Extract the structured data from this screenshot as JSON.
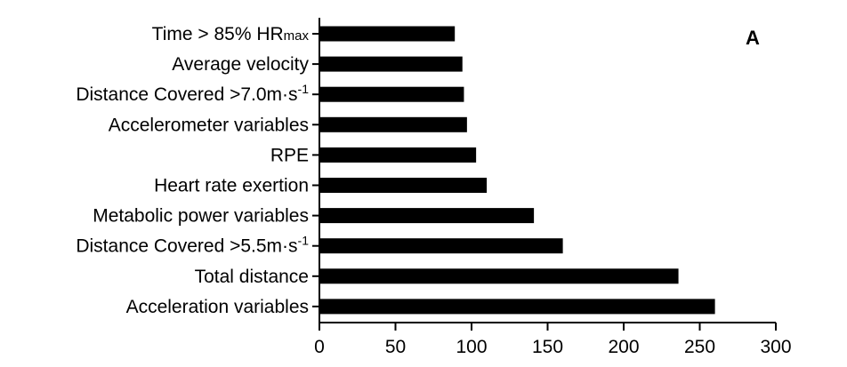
{
  "chart_data": {
    "type": "bar",
    "orientation": "horizontal",
    "panel_label": "A",
    "categories": [
      {
        "text": "Time > 85% HR",
        "sub": "max"
      },
      {
        "text": "Average velocity"
      },
      {
        "text": "Distance Covered >7.0m·s",
        "sup": "-1"
      },
      {
        "text": "Accelerometer variables"
      },
      {
        "text": "RPE"
      },
      {
        "text": "Heart rate exertion"
      },
      {
        "text": "Metabolic power variables"
      },
      {
        "text": "Distance Covered >5.5m·s",
        "sup": "-1"
      },
      {
        "text": "Total distance"
      },
      {
        "text": "Acceleration variables"
      }
    ],
    "values": [
      89,
      94,
      95,
      97,
      103,
      110,
      141,
      160,
      236,
      260
    ],
    "xlim": [
      0,
      300
    ],
    "xticks": [
      "0",
      "50",
      "100",
      "150",
      "200",
      "250",
      "300"
    ],
    "xlabel": "",
    "ylabel": "",
    "bar_color": "#000000",
    "grid": false
  }
}
